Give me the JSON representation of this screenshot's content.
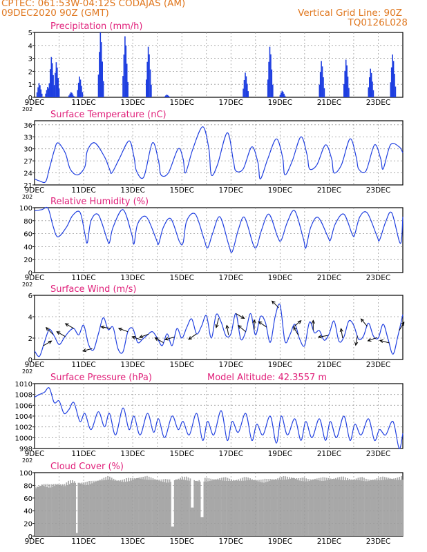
{
  "header": {
    "line1": "CPTEC:   061:53W-04:12S   CODAJAS (AM)",
    "line2": "09DEC2020 90Z (GMT)",
    "grid_note": "Vertical Grid Line: 90Z",
    "run_code": "TQ0126L028"
  },
  "colors": {
    "header": "#e07820",
    "panel_title": "#e0207a",
    "series": "#1f3fe0",
    "cloud": "#a8a8a8",
    "grid": "#9a9a9a"
  },
  "x_tick_labels": [
    "9DEC",
    "11DEC",
    "13DEC",
    "15DEC",
    "17DEC",
    "19DEC",
    "21DEC",
    "23DEC"
  ],
  "x_year_fragment": "202",
  "chart_data": [
    {
      "id": "precip",
      "type": "bar",
      "title": "Precipitation (mm/h)",
      "x_range_days": [
        9,
        24
      ],
      "ylim": [
        0,
        5
      ],
      "yticks": [
        0,
        1,
        2,
        3,
        4,
        5
      ],
      "bursts": [
        {
          "day": 9.2,
          "peak": 1.1
        },
        {
          "day": 9.55,
          "peak": 0.8
        },
        {
          "day": 9.7,
          "peak": 3.1
        },
        {
          "day": 9.9,
          "peak": 2.7
        },
        {
          "day": 10.5,
          "peak": 0.4
        },
        {
          "day": 10.85,
          "peak": 1.6
        },
        {
          "day": 11.7,
          "peak": 5.0
        },
        {
          "day": 12.7,
          "peak": 4.7
        },
        {
          "day": 13.65,
          "peak": 3.9
        },
        {
          "day": 14.4,
          "peak": 0.2
        },
        {
          "day": 17.6,
          "peak": 1.9
        },
        {
          "day": 18.6,
          "peak": 3.9
        },
        {
          "day": 19.1,
          "peak": 0.5
        },
        {
          "day": 20.7,
          "peak": 2.8
        },
        {
          "day": 21.7,
          "peak": 2.9
        },
        {
          "day": 22.7,
          "peak": 2.2
        },
        {
          "day": 23.6,
          "peak": 3.3
        }
      ]
    },
    {
      "id": "temp",
      "type": "line",
      "title": "Surface Temperature (nC)",
      "ylim": [
        21,
        37
      ],
      "yticks": [
        21,
        24,
        27,
        30,
        33,
        36
      ],
      "days": [
        9.0,
        9.2,
        9.45,
        9.6,
        9.8,
        9.95,
        10.25,
        10.45,
        10.75,
        11.05,
        11.15,
        11.45,
        11.85,
        12.05,
        12.15,
        12.45,
        12.85,
        13.05,
        13.15,
        13.45,
        13.8,
        14.05,
        14.15,
        14.45,
        14.85,
        15.05,
        15.15,
        15.45,
        15.85,
        16.1,
        16.2,
        16.45,
        16.85,
        17.1,
        17.2,
        17.5,
        17.85,
        18.1,
        18.2,
        18.5,
        18.85,
        19.1,
        19.2,
        19.5,
        19.85,
        20.1,
        20.2,
        20.5,
        20.85,
        21.1,
        21.2,
        21.5,
        21.85,
        22.1,
        22.2,
        22.5,
        22.85,
        23.1,
        23.2,
        23.5,
        23.85,
        24.0
      ],
      "values": [
        22.5,
        22.0,
        21.8,
        25.0,
        29.5,
        31.5,
        29.0,
        25.0,
        23.5,
        25.5,
        29.5,
        31.5,
        28.0,
        25.0,
        24.0,
        27.5,
        32.0,
        28.0,
        24.5,
        23.0,
        31.5,
        27.0,
        23.5,
        24.0,
        30.0,
        27.5,
        24.0,
        30.0,
        35.5,
        30.0,
        23.5,
        26.0,
        34.0,
        27.0,
        24.5,
        25.0,
        30.5,
        26.5,
        22.5,
        27.5,
        32.5,
        28.0,
        23.5,
        27.0,
        33.0,
        28.5,
        25.0,
        26.0,
        31.0,
        27.5,
        24.0,
        26.0,
        32.5,
        28.0,
        25.0,
        24.5,
        31.0,
        27.5,
        25.0,
        31.0,
        30.5,
        29.0
      ]
    },
    {
      "id": "rh",
      "type": "line",
      "title": "Relative Humidity (%)",
      "ylim": [
        0,
        100
      ],
      "yticks": [
        0,
        20,
        40,
        60,
        80,
        100
      ],
      "days": [
        9.0,
        9.3,
        9.55,
        9.75,
        9.95,
        10.3,
        10.55,
        10.85,
        11.05,
        11.15,
        11.3,
        11.6,
        11.95,
        12.05,
        12.2,
        12.6,
        12.95,
        13.05,
        13.2,
        13.55,
        13.95,
        14.05,
        14.25,
        14.55,
        14.9,
        15.05,
        15.2,
        15.55,
        15.9,
        16.05,
        16.25,
        16.55,
        16.9,
        17.05,
        17.3,
        17.55,
        17.9,
        18.05,
        18.25,
        18.55,
        18.9,
        19.05,
        19.3,
        19.6,
        19.95,
        20.05,
        20.25,
        20.55,
        20.95,
        21.05,
        21.25,
        21.6,
        21.95,
        22.05,
        22.25,
        22.55,
        22.95,
        23.05,
        23.3,
        23.55,
        23.9,
        24.0
      ],
      "values": [
        95,
        97,
        99,
        72,
        55,
        70,
        88,
        93,
        60,
        46,
        80,
        89,
        52,
        46,
        70,
        97,
        60,
        44,
        75,
        86,
        52,
        44,
        70,
        83,
        48,
        46,
        80,
        90,
        52,
        38,
        60,
        86,
        44,
        32,
        66,
        85,
        44,
        40,
        66,
        90,
        55,
        50,
        78,
        95,
        52,
        38,
        70,
        85,
        55,
        50,
        75,
        90,
        58,
        60,
        86,
        92,
        56,
        50,
        78,
        92,
        45,
        86
      ]
    },
    {
      "id": "wind",
      "type": "line",
      "title": "Surface Wind (m/s)",
      "ylim": [
        0,
        6
      ],
      "yticks": [
        0,
        2,
        4,
        6
      ],
      "days": [
        9.0,
        9.2,
        9.4,
        9.6,
        9.8,
        10.0,
        10.2,
        10.4,
        10.6,
        10.8,
        11.0,
        11.2,
        11.4,
        11.6,
        11.8,
        12.0,
        12.2,
        12.4,
        12.6,
        12.8,
        13.0,
        13.2,
        13.4,
        13.6,
        13.8,
        14.0,
        14.2,
        14.4,
        14.6,
        14.8,
        15.0,
        15.2,
        15.4,
        15.6,
        15.8,
        16.0,
        16.2,
        16.4,
        16.6,
        16.8,
        17.0,
        17.2,
        17.4,
        17.6,
        17.8,
        18.0,
        18.2,
        18.4,
        18.6,
        18.8,
        19.0,
        19.2,
        19.4,
        19.6,
        19.8,
        20.0,
        20.2,
        20.4,
        20.6,
        20.8,
        21.0,
        21.2,
        21.4,
        21.6,
        21.8,
        22.0,
        22.2,
        22.4,
        22.6,
        22.8,
        23.0,
        23.2,
        23.4,
        23.6,
        23.8,
        24.0
      ],
      "values": [
        0.8,
        0.3,
        1.6,
        2.8,
        2.2,
        1.4,
        2.0,
        2.6,
        2.9,
        2.3,
        3.2,
        1.4,
        0.9,
        2.4,
        3.9,
        2.8,
        3.0,
        1.0,
        0.7,
        2.6,
        2.9,
        1.6,
        1.9,
        2.3,
        2.6,
        2.0,
        1.3,
        2.4,
        1.3,
        2.9,
        2.0,
        3.0,
        3.8,
        2.4,
        3.1,
        4.1,
        2.0,
        4.2,
        3.5,
        2.2,
        2.4,
        4.3,
        1.9,
        2.6,
        4.3,
        2.3,
        4.0,
        3.5,
        1.6,
        4.0,
        5.1,
        1.7,
        2.3,
        3.3,
        1.9,
        1.3,
        3.5,
        2.5,
        2.7,
        1.8,
        2.4,
        3.6,
        1.7,
        2.1,
        3.6,
        3.2,
        1.9,
        2.2,
        3.4,
        2.2,
        2.0,
        3.3,
        1.9,
        0.5,
        2.2,
        4.2
      ]
    },
    {
      "id": "pressure",
      "type": "line",
      "title": "Surface Pressure (hPa)",
      "note": "Model Altitude: 42.3557 m",
      "ylim": [
        998,
        1010
      ],
      "yticks": [
        998,
        1000,
        1002,
        1004,
        1006,
        1008,
        1010
      ],
      "days": [
        9.0,
        9.2,
        9.4,
        9.6,
        9.8,
        10.0,
        10.2,
        10.4,
        10.6,
        10.85,
        11.05,
        11.3,
        11.6,
        11.85,
        12.05,
        12.3,
        12.6,
        12.85,
        13.05,
        13.3,
        13.6,
        13.85,
        14.05,
        14.3,
        14.6,
        14.85,
        15.05,
        15.3,
        15.6,
        15.85,
        16.05,
        16.3,
        16.6,
        16.85,
        17.05,
        17.3,
        17.6,
        17.85,
        18.05,
        18.3,
        18.6,
        18.85,
        19.05,
        19.3,
        19.6,
        19.85,
        20.05,
        20.3,
        20.6,
        20.85,
        21.05,
        21.3,
        21.6,
        21.85,
        22.05,
        22.3,
        22.6,
        22.85,
        23.05,
        23.3,
        23.6,
        23.85,
        24.0
      ],
      "values": [
        1007.5,
        1008.0,
        1008.4,
        1009.2,
        1006.5,
        1006.8,
        1004.5,
        1005.2,
        1006.5,
        1003.0,
        1004.5,
        1001.5,
        1004.8,
        1002.0,
        1004.5,
        1000.5,
        1005.5,
        1001.5,
        1004.0,
        1000.5,
        1004.5,
        1001.0,
        1003.5,
        1000.0,
        1004.0,
        1001.5,
        1003.0,
        1000.5,
        1004.5,
        999.5,
        1003.0,
        1000.5,
        1005.0,
        999.5,
        1003.0,
        1001.0,
        1004.5,
        999.5,
        1002.5,
        1000.5,
        1004.0,
        999.0,
        1004.0,
        1000.5,
        1003.5,
        999.5,
        1003.0,
        1000.0,
        1003.5,
        999.5,
        1003.0,
        1000.0,
        1004.0,
        999.5,
        1002.5,
        1000.5,
        1003.5,
        999.5,
        1001.5,
        1000.5,
        1003.0,
        998.0,
        1000.8
      ]
    },
    {
      "id": "cloud",
      "type": "bar",
      "title": "Cloud Cover (%)",
      "ylim": [
        0,
        100
      ],
      "yticks": [
        0,
        20,
        40,
        60,
        80,
        100
      ],
      "days": [
        9.0,
        9.3,
        9.6,
        9.9,
        10.2,
        10.5,
        10.8,
        11.1,
        11.4,
        11.7,
        12.0,
        12.3,
        12.6,
        12.9,
        13.2,
        13.5,
        13.8,
        14.1,
        14.4,
        14.7,
        15.0,
        15.3,
        15.6,
        15.9,
        16.2,
        16.5,
        16.8,
        17.1,
        17.4,
        17.7,
        18.0,
        18.3,
        18.6,
        18.9,
        19.2,
        19.5,
        19.8,
        20.1,
        20.4,
        20.7,
        21.0,
        21.3,
        21.6,
        21.9,
        22.2,
        22.5,
        22.8,
        23.1,
        23.4,
        23.7,
        24.0
      ],
      "values": [
        80,
        85,
        82,
        86,
        84,
        90,
        88,
        86,
        90,
        93,
        95,
        92,
        91,
        93,
        96,
        95,
        94,
        92,
        90,
        93,
        95,
        93,
        91,
        92,
        93,
        94,
        93,
        92,
        93,
        94,
        92,
        90,
        93,
        94,
        95,
        96,
        93,
        92,
        94,
        93,
        94,
        95,
        94,
        93,
        94,
        92,
        93,
        94,
        95,
        94,
        95
      ],
      "dips": [
        {
          "day": 10.7,
          "value": 5
        },
        {
          "day": 14.6,
          "value": 15
        },
        {
          "day": 15.4,
          "value": 45
        },
        {
          "day": 15.8,
          "value": 30
        }
      ]
    }
  ],
  "wind_arrows": [
    {
      "day": 9.35,
      "dir_deg": 30
    },
    {
      "day": 9.75,
      "dir_deg": 135
    },
    {
      "day": 10.25,
      "dir_deg": 150
    },
    {
      "day": 10.6,
      "dir_deg": 150
    },
    {
      "day": 11.35,
      "dir_deg": 195
    },
    {
      "day": 12.1,
      "dir_deg": 170
    },
    {
      "day": 12.8,
      "dir_deg": 160
    },
    {
      "day": 13.35,
      "dir_deg": 160
    },
    {
      "day": 13.65,
      "dir_deg": 200
    },
    {
      "day": 14.25,
      "dir_deg": 150
    },
    {
      "day": 14.7,
      "dir_deg": 195
    },
    {
      "day": 15.6,
      "dir_deg": 215
    },
    {
      "day": 16.5,
      "dir_deg": 255
    },
    {
      "day": 16.9,
      "dir_deg": 100
    },
    {
      "day": 17.2,
      "dir_deg": 330
    },
    {
      "day": 17.6,
      "dir_deg": 140
    },
    {
      "day": 17.95,
      "dir_deg": 90
    },
    {
      "day": 18.45,
      "dir_deg": 145
    },
    {
      "day": 18.95,
      "dir_deg": 135
    },
    {
      "day": 19.55,
      "dir_deg": 40
    },
    {
      "day": 19.75,
      "dir_deg": 120
    },
    {
      "day": 20.35,
      "dir_deg": 90
    },
    {
      "day": 20.95,
      "dir_deg": 190
    },
    {
      "day": 21.55,
      "dir_deg": 100
    },
    {
      "day": 22.15,
      "dir_deg": 260
    },
    {
      "day": 22.55,
      "dir_deg": 130
    },
    {
      "day": 22.95,
      "dir_deg": 200
    },
    {
      "day": 23.45,
      "dir_deg": 165
    },
    {
      "day": 23.85,
      "dir_deg": 60
    }
  ]
}
